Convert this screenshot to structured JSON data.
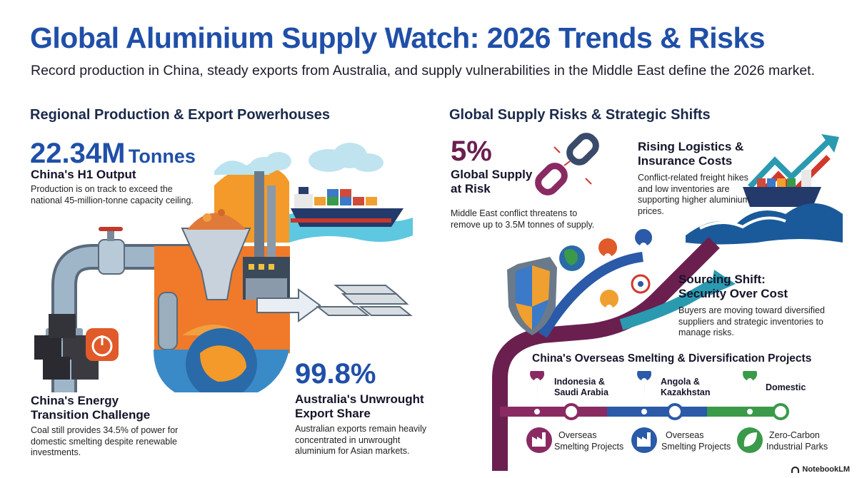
{
  "header": {
    "title": "Global Aluminium Supply Watch: 2026 Trends & Risks",
    "subtitle": "Record production in China, steady exports from Australia, and supply vulnerabilities in the Middle East define the 2026 market."
  },
  "left": {
    "heading": "Regional Production & Export Powerhouses",
    "china_output": {
      "value": "22.34M",
      "unit": "Tonnes",
      "label": "China's H1 Output",
      "desc": "Production is on track to exceed the national 45-million-tonne capacity ceiling."
    },
    "energy": {
      "label_line1": "China's Energy",
      "label_line2": "Transition Challenge",
      "desc": "Coal still provides 34.5% of power for domestic smelting despite renewable investments."
    },
    "australia": {
      "value": "99.8%",
      "label_line1": "Australia's Unwrought",
      "label_line2": "Export Share",
      "desc": "Australian exports remain heavily concentrated in unwrought aluminium for Asian markets."
    }
  },
  "right": {
    "heading": "Global Supply Risks & Strategic Shifts",
    "risk": {
      "value": "5%",
      "label_line1": "Global Supply",
      "label_line2": "at Risk",
      "desc": "Middle East conflict threatens to remove up to 3.5M tonnes of supply."
    },
    "logistics": {
      "label_line1": "Rising Logistics &",
      "label_line2": "Insurance Costs",
      "desc": "Conflict-related freight hikes and low inventories are supporting higher aluminium prices."
    },
    "sourcing": {
      "label_line1": "Sourcing Shift:",
      "label_line2": "Security Over Cost",
      "desc": "Buyers are moving toward diversified suppliers and strategic inventories to manage risks."
    },
    "projects": {
      "heading": "China's Overseas Smelting & Diversification Projects",
      "items": [
        {
          "location": "Indonesia & Saudi Arabia",
          "loc1": "Indonesia &",
          "loc2": "Saudi Arabia",
          "d1": "Overseas",
          "d2": "Smelting Projects",
          "color": "#8a2a63"
        },
        {
          "location": "Angola & Kazakhstan",
          "loc1": "Angola &",
          "loc2": "Kazakhstan",
          "d1": "Overseas",
          "d2": "Smelting Projects",
          "color": "#2a5aa8"
        },
        {
          "location": "Domestic",
          "loc1": "Domestic",
          "loc2": "",
          "d1": "Zero-Carbon",
          "d2": "Industrial Parks",
          "color": "#3a9a4a"
        }
      ]
    }
  },
  "brand": "NotebookLM",
  "colors": {
    "blue": "#1f4fa8",
    "purple": "#6b1f4f",
    "orange": "#f07a2a",
    "green": "#3a9a4a",
    "teal": "#2a9ab0"
  }
}
